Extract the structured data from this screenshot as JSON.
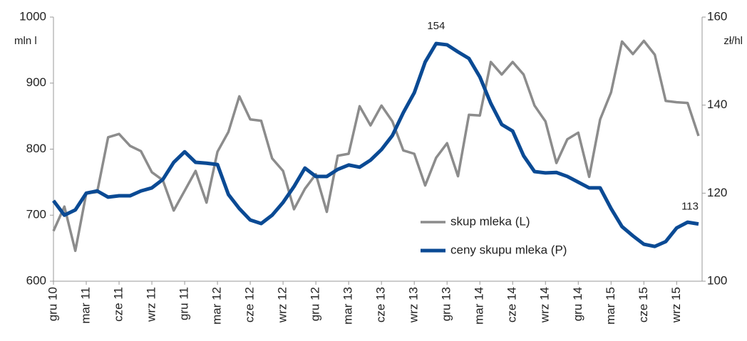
{
  "chart_data": {
    "type": "line",
    "y_label": "mln l",
    "y2_label": "zł/hl",
    "categories": [
      "gru 10",
      null,
      null,
      "mar 11",
      null,
      null,
      "cze 11",
      null,
      null,
      "wrz 11",
      null,
      null,
      "gru 11",
      null,
      null,
      "mar 12",
      null,
      null,
      "cze 12",
      null,
      null,
      "wrz 12",
      null,
      null,
      "gru 12",
      null,
      null,
      "mar 13",
      null,
      null,
      "cze 13",
      null,
      null,
      "wrz 13",
      null,
      null,
      "gru 13",
      null,
      null,
      "mar 14",
      null,
      null,
      "cze 14",
      null,
      null,
      "wrz 14",
      null,
      null,
      "gru 14",
      null,
      null,
      "mar 15",
      null,
      null,
      "cze 15",
      null,
      null,
      "wrz 15",
      null,
      null
    ],
    "series": [
      {
        "name": "skup mleka (L)",
        "color": "#8c8c8c",
        "axis": "y",
        "values": [
          676,
          713,
          646,
          733,
          735,
          818,
          823,
          805,
          797,
          765,
          753,
          707,
          737,
          767,
          719,
          796,
          826,
          880,
          845,
          843,
          786,
          767,
          709,
          740,
          762,
          705,
          790,
          793,
          865,
          836,
          866,
          842,
          798,
          793,
          745,
          787,
          809,
          759,
          852,
          851,
          932,
          913,
          932,
          913,
          866,
          842,
          779,
          815,
          825,
          758,
          845,
          886,
          963,
          944,
          964,
          943,
          873,
          871,
          870,
          820
        ]
      },
      {
        "name": "ceny skupu mleka (P)",
        "color": "#0a4a94",
        "axis": "y2",
        "values": [
          118.3,
          115.0,
          116.2,
          120.0,
          120.5,
          119.1,
          119.4,
          119.4,
          120.5,
          121.2,
          123.1,
          127.0,
          129.4,
          127.0,
          126.8,
          126.5,
          119.7,
          116.5,
          113.9,
          113.1,
          115.0,
          117.9,
          121.5,
          125.7,
          123.8,
          123.8,
          125.4,
          126.4,
          125.9,
          127.5,
          129.9,
          133.1,
          138.3,
          142.8,
          149.8,
          154,
          153.7,
          152.1,
          150.6,
          146.4,
          140.4,
          135.6,
          134.1,
          128.5,
          124.9,
          124.6,
          124.7,
          123.8,
          122.5,
          121.2,
          121.2,
          116.5,
          112.4,
          110.3,
          108.4,
          107.9,
          109.0,
          112.1,
          113.4,
          113
        ],
        "value_labels": [
          null,
          null,
          null,
          null,
          null,
          null,
          null,
          null,
          null,
          null,
          null,
          null,
          null,
          null,
          null,
          null,
          null,
          null,
          null,
          null,
          null,
          null,
          null,
          null,
          null,
          null,
          null,
          null,
          null,
          null,
          null,
          null,
          null,
          null,
          null,
          "154",
          null,
          null,
          null,
          null,
          null,
          null,
          null,
          null,
          null,
          null,
          null,
          null,
          null,
          null,
          null,
          null,
          null,
          null,
          null,
          null,
          null,
          null,
          null,
          "113"
        ]
      }
    ],
    "ylim": [
      600,
      1000
    ],
    "yticks": [
      600,
      700,
      800,
      900,
      1000
    ],
    "y2lim": [
      100,
      160
    ],
    "y2ticks": [
      100,
      120,
      140,
      160
    ],
    "grid": false,
    "legend": "lower right"
  }
}
